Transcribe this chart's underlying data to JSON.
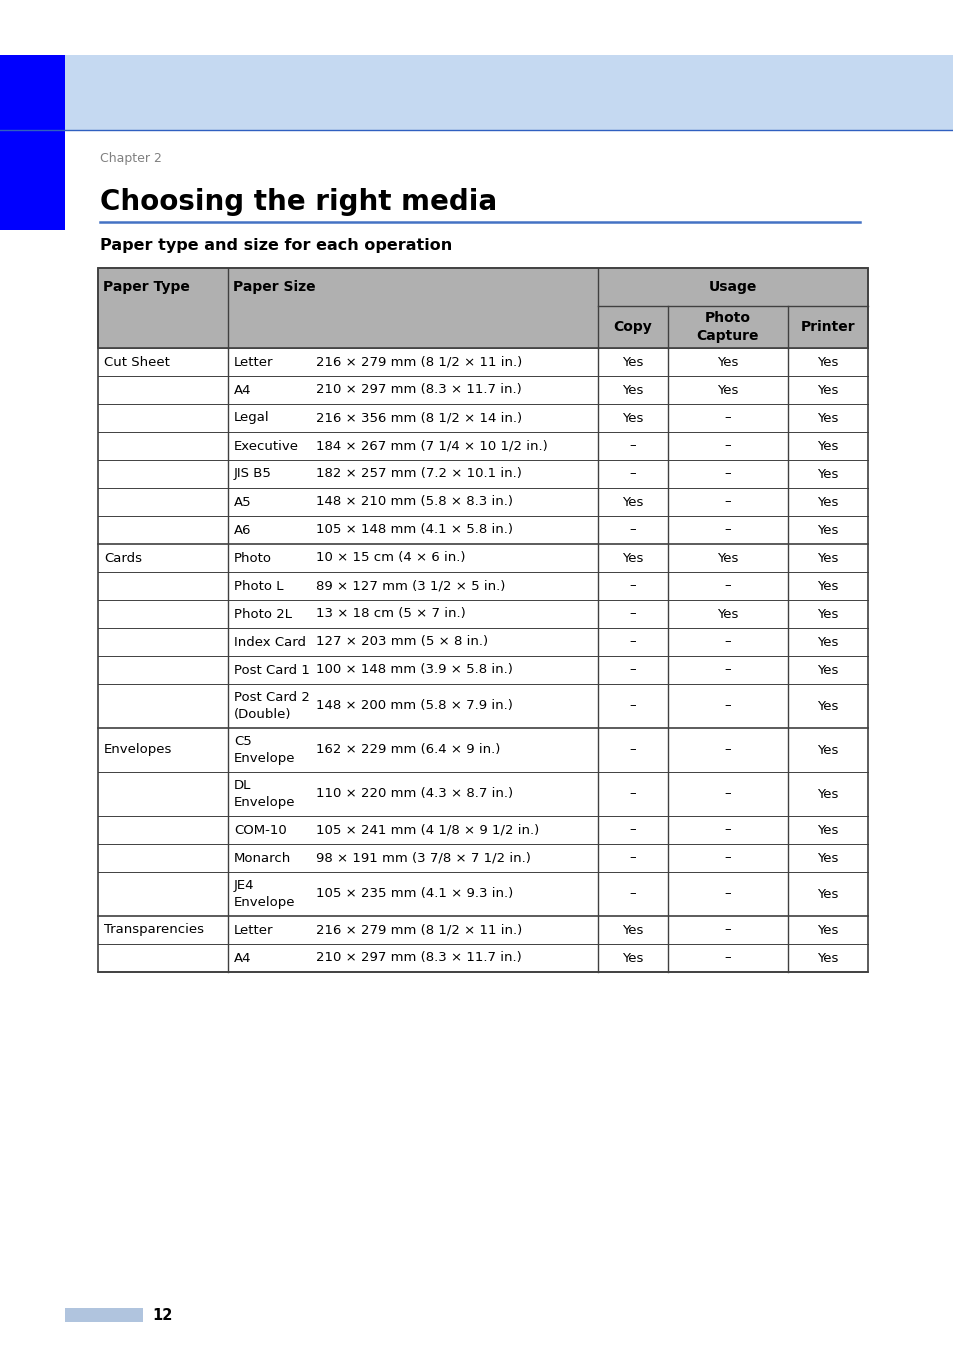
{
  "page_bg": "#ffffff",
  "header_bar_color": "#c5d9f1",
  "header_blue_rect_color": "#0000ff",
  "chapter_text": "Chapter 2",
  "chapter_color": "#808080",
  "title": "Choosing the right media",
  "title_color": "#000000",
  "title_underline_color": "#4472c4",
  "subtitle": "Paper type and size for each operation",
  "table_header_bg": "#b0b0b0",
  "table_border_color": "#404040",
  "page_number": "12",
  "footer_rect_color": "#b0c4de",
  "table_rows": [
    {
      "type": "Cut Sheet",
      "size_name": "Letter",
      "size_dim": "216 × 279 mm (8 1/2 × 11 in.)",
      "copy": "Yes",
      "photo": "Yes",
      "printer": "Yes",
      "show_type": true,
      "double_line": false
    },
    {
      "type": "Cut Sheet",
      "size_name": "A4",
      "size_dim": "210 × 297 mm (8.3 × 11.7 in.)",
      "copy": "Yes",
      "photo": "Yes",
      "printer": "Yes",
      "show_type": false,
      "double_line": false
    },
    {
      "type": "Cut Sheet",
      "size_name": "Legal",
      "size_dim": "216 × 356 mm (8 1/2 × 14 in.)",
      "copy": "Yes",
      "photo": "–",
      "printer": "Yes",
      "show_type": false,
      "double_line": false
    },
    {
      "type": "Cut Sheet",
      "size_name": "Executive",
      "size_dim": "184 × 267 mm (7 1/4 × 10 1/2 in.)",
      "copy": "–",
      "photo": "–",
      "printer": "Yes",
      "show_type": false,
      "double_line": false
    },
    {
      "type": "Cut Sheet",
      "size_name": "JIS B5",
      "size_dim": "182 × 257 mm (7.2 × 10.1 in.)",
      "copy": "–",
      "photo": "–",
      "printer": "Yes",
      "show_type": false,
      "double_line": false
    },
    {
      "type": "Cut Sheet",
      "size_name": "A5",
      "size_dim": "148 × 210 mm (5.8 × 8.3 in.)",
      "copy": "Yes",
      "photo": "–",
      "printer": "Yes",
      "show_type": false,
      "double_line": false
    },
    {
      "type": "Cut Sheet",
      "size_name": "A6",
      "size_dim": "105 × 148 mm (4.1 × 5.8 in.)",
      "copy": "–",
      "photo": "–",
      "printer": "Yes",
      "show_type": false,
      "double_line": false
    },
    {
      "type": "Cards",
      "size_name": "Photo",
      "size_dim": "10 × 15 cm (4 × 6 in.)",
      "copy": "Yes",
      "photo": "Yes",
      "printer": "Yes",
      "show_type": true,
      "double_line": false
    },
    {
      "type": "Cards",
      "size_name": "Photo L",
      "size_dim": "89 × 127 mm (3 1/2 × 5 in.)",
      "copy": "–",
      "photo": "–",
      "printer": "Yes",
      "show_type": false,
      "double_line": false
    },
    {
      "type": "Cards",
      "size_name": "Photo 2L",
      "size_dim": "13 × 18 cm (5 × 7 in.)",
      "copy": "–",
      "photo": "Yes",
      "printer": "Yes",
      "show_type": false,
      "double_line": false
    },
    {
      "type": "Cards",
      "size_name": "Index Card",
      "size_dim": "127 × 203 mm (5 × 8 in.)",
      "copy": "–",
      "photo": "–",
      "printer": "Yes",
      "show_type": false,
      "double_line": false
    },
    {
      "type": "Cards",
      "size_name": "Post Card 1",
      "size_dim": "100 × 148 mm (3.9 × 5.8 in.)",
      "copy": "–",
      "photo": "–",
      "printer": "Yes",
      "show_type": false,
      "double_line": false
    },
    {
      "type": "Cards",
      "size_name": "Post Card 2",
      "size_dim": "148 × 200 mm (5.8 × 7.9 in.)",
      "copy": "–",
      "photo": "–",
      "printer": "Yes",
      "show_type": false,
      "double_line": true
    },
    {
      "type": "Envelopes",
      "size_name": "C5",
      "size_dim": "162 × 229 mm (6.4 × 9 in.)",
      "copy": "–",
      "photo": "–",
      "printer": "Yes",
      "show_type": true,
      "double_line": true
    },
    {
      "type": "Envelopes",
      "size_name": "DL",
      "size_dim": "110 × 220 mm (4.3 × 8.7 in.)",
      "copy": "–",
      "photo": "–",
      "printer": "Yes",
      "show_type": false,
      "double_line": true
    },
    {
      "type": "Envelopes",
      "size_name": "COM-10",
      "size_dim": "105 × 241 mm (4 1/8 × 9 1/2 in.)",
      "copy": "–",
      "photo": "–",
      "printer": "Yes",
      "show_type": false,
      "double_line": false
    },
    {
      "type": "Envelopes",
      "size_name": "Monarch",
      "size_dim": "98 × 191 mm (3 7/8 × 7 1/2 in.)",
      "copy": "–",
      "photo": "–",
      "printer": "Yes",
      "show_type": false,
      "double_line": false
    },
    {
      "type": "Envelopes",
      "size_name": "JE4",
      "size_dim": "105 × 235 mm (4.1 × 9.3 in.)",
      "copy": "–",
      "photo": "–",
      "printer": "Yes",
      "show_type": false,
      "double_line": true
    },
    {
      "type": "Transparencies",
      "size_name": "Letter",
      "size_dim": "216 × 279 mm (8 1/2 × 11 in.)",
      "copy": "Yes",
      "photo": "–",
      "printer": "Yes",
      "show_type": true,
      "double_line": false
    },
    {
      "type": "Transparencies",
      "size_name": "A4",
      "size_dim": "210 × 297 mm (8.3 × 11.7 in.)",
      "copy": "Yes",
      "photo": "–",
      "printer": "Yes",
      "show_type": false,
      "double_line": false
    }
  ],
  "size_name2": {
    "Post Card 2": "(Double)",
    "C5": "Envelope",
    "DL": "Envelope",
    "JE4": "Envelope"
  }
}
